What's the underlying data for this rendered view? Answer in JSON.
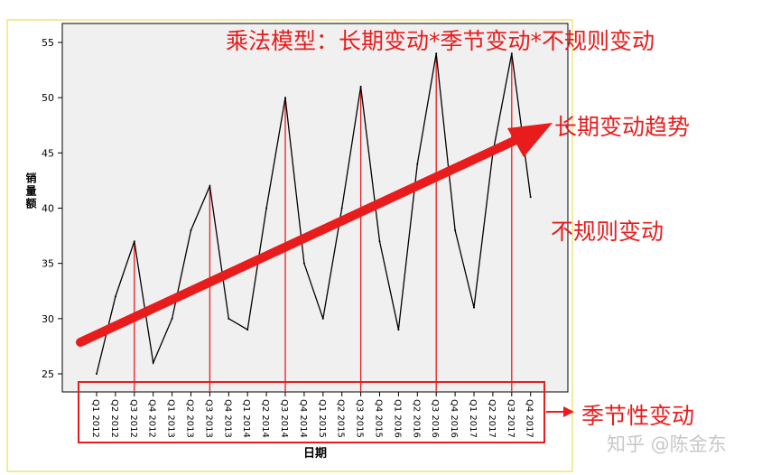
{
  "chart_data": {
    "type": "line",
    "xlabel": "日期",
    "ylabel": "销量额",
    "ylim": [
      23.5,
      55.5
    ],
    "y_ticks": [
      25,
      30,
      35,
      40,
      45,
      50,
      55
    ],
    "grid": false,
    "categories": [
      "Q1 2012",
      "Q2 2012",
      "Q3 2012",
      "Q4 2012",
      "Q1 2013",
      "Q2 2013",
      "Q3 2013",
      "Q4 2013",
      "Q1 2014",
      "Q2 2014",
      "Q3 2014",
      "Q4 2014",
      "Q1 2015",
      "Q2 2015",
      "Q3 2015",
      "Q4 2015",
      "Q1 2016",
      "Q2 2016",
      "Q3 2016",
      "Q4 2016",
      "Q1 2017",
      "Q2 2017",
      "Q3 2017",
      "Q4 2017"
    ],
    "series": [
      {
        "values": [
          25,
          32,
          37,
          26,
          30,
          38,
          42,
          30,
          29,
          40,
          50,
          35,
          30,
          40,
          51,
          37,
          29,
          44,
          54,
          38,
          31,
          45,
          54,
          41
        ]
      }
    ],
    "annotations": {
      "title": "乘法模型：长期变动*季节变动*不规则变动",
      "trend": "长期变动趋势",
      "irregular": "不规则变动",
      "seasonal": "季节性变动"
    },
    "colors": {
      "line": "#000000",
      "annotation": "#e81c1c",
      "plot_bg": "#f0f0f0",
      "frame": "#f2ea9c"
    }
  },
  "watermark": "知乎 @陈金东"
}
